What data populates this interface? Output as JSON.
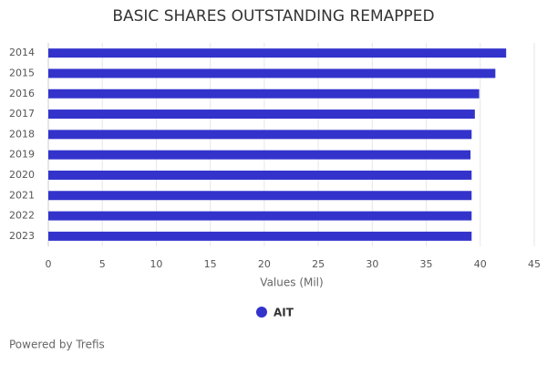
{
  "chart_data": {
    "type": "hbar",
    "title": "BASIC SHARES OUTSTANDING REMAPPED",
    "categories": [
      "2014",
      "2015",
      "2016",
      "2017",
      "2018",
      "2019",
      "2020",
      "2021",
      "2022",
      "2023"
    ],
    "series": [
      {
        "name": "AIT",
        "color": "#3333cc",
        "values": [
          42.4,
          41.4,
          39.9,
          39.5,
          39.2,
          39.1,
          39.2,
          39.2,
          39.2,
          39.2
        ]
      }
    ],
    "xlabel": "Values (Mil)",
    "xlim": [
      0,
      45
    ],
    "xticks": [
      0,
      5,
      10,
      15,
      20,
      25,
      30,
      35,
      40,
      45
    ],
    "grid": true,
    "credit": "Powered by Trefis"
  }
}
